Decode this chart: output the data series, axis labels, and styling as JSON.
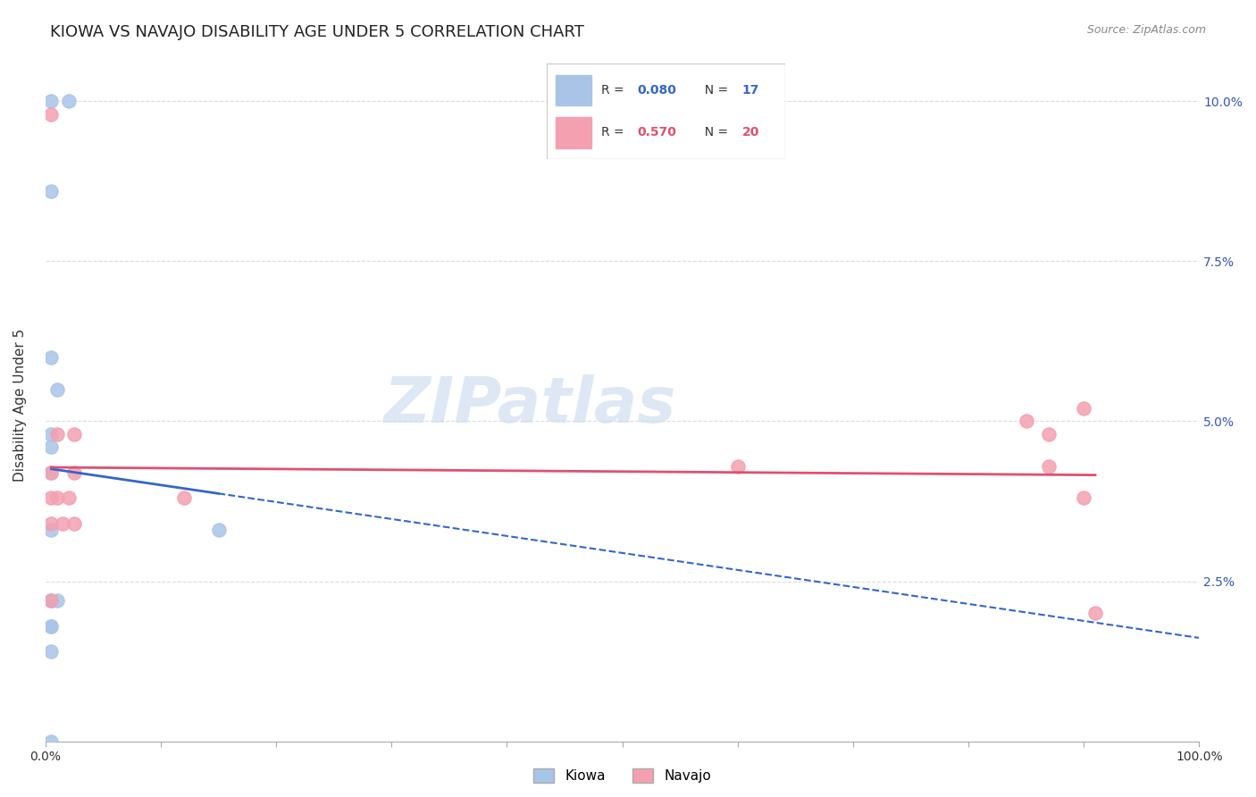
{
  "title": "KIOWA VS NAVAJO DISABILITY AGE UNDER 5 CORRELATION CHART",
  "source": "Source: ZipAtlas.com",
  "xlabel": "",
  "ylabel": "Disability Age Under 5",
  "xlim": [
    0.0,
    1.0
  ],
  "ylim": [
    0.0,
    0.105
  ],
  "xtick_labels": [
    "0.0%",
    "100.0%"
  ],
  "xtick_positions": [
    0.0,
    1.0
  ],
  "ytick_labels": [
    "2.5%",
    "5.0%",
    "7.5%",
    "10.0%"
  ],
  "ytick_positions": [
    0.025,
    0.05,
    0.075,
    0.1
  ],
  "kiowa_R": 0.08,
  "kiowa_N": 17,
  "navajo_R": 0.57,
  "navajo_N": 20,
  "kiowa_color": "#aac4e8",
  "navajo_color": "#f4a0b0",
  "kiowa_line_color": "#3366cc",
  "navajo_line_color": "#e05070",
  "watermark_color": "#d0dff0",
  "background_color": "#ffffff",
  "grid_color": "#cccccc",
  "kiowa_x": [
    0.005,
    0.02,
    0.005,
    0.005,
    0.01,
    0.005,
    0.005,
    0.005,
    0.005,
    0.005,
    0.005,
    0.01,
    0.005,
    0.005,
    0.005,
    0.005,
    0.15
  ],
  "kiowa_y": [
    0.1,
    0.1,
    0.086,
    0.06,
    0.055,
    0.048,
    0.046,
    0.042,
    0.033,
    0.022,
    0.022,
    0.022,
    0.018,
    0.018,
    0.014,
    0.0,
    0.033
  ],
  "navajo_x": [
    0.005,
    0.005,
    0.005,
    0.005,
    0.005,
    0.01,
    0.01,
    0.015,
    0.02,
    0.025,
    0.025,
    0.025,
    0.12,
    0.6,
    0.85,
    0.87,
    0.87,
    0.9,
    0.9,
    0.91
  ],
  "navajo_y": [
    0.098,
    0.042,
    0.038,
    0.034,
    0.022,
    0.048,
    0.038,
    0.034,
    0.038,
    0.048,
    0.042,
    0.034,
    0.038,
    0.043,
    0.05,
    0.048,
    0.043,
    0.052,
    0.038,
    0.02
  ],
  "title_fontsize": 13,
  "axis_label_fontsize": 11,
  "tick_fontsize": 10,
  "legend_fontsize": 11,
  "marker_size": 120
}
